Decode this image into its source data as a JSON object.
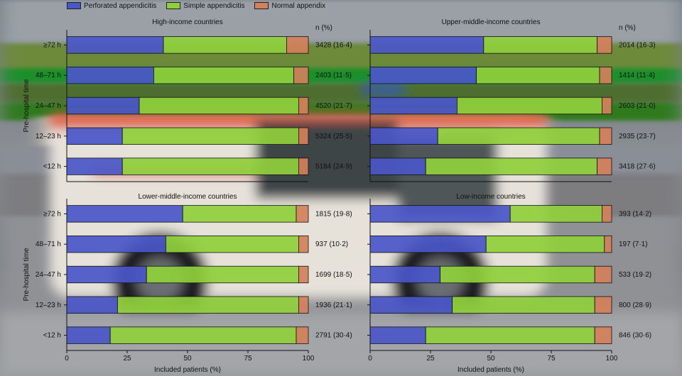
{
  "legend": [
    {
      "label": "Perforated appendicitis",
      "color": "#4a57c8"
    },
    {
      "label": "Simple appendicitis",
      "color": "#8fcf3c"
    },
    {
      "label": "Normal appendix",
      "color": "#d4805a"
    }
  ],
  "common": {
    "ylabel": "Pre-hospital time",
    "xlabel": "Included patients (%)",
    "n_header": "n (%)",
    "xticks": [
      0,
      25,
      50,
      75,
      100
    ],
    "categories": [
      "≥72 h",
      "48–71 h",
      "24–47 h",
      "12–23 h",
      "<12 h"
    ]
  },
  "chart_data": [
    {
      "type": "bar",
      "title": "High-income countries",
      "categories": [
        "≥72 h",
        "48–71 h",
        "24–47 h",
        "12–23 h",
        "<12 h"
      ],
      "series": [
        {
          "name": "Perforated appendicitis",
          "values": [
            40,
            36,
            30,
            23,
            23
          ]
        },
        {
          "name": "Simple appendicitis",
          "values": [
            51,
            58,
            66,
            73,
            73
          ]
        },
        {
          "name": "Normal appendix",
          "values": [
            9,
            6,
            4,
            4,
            4
          ]
        }
      ],
      "n_labels": [
        "3428 (16·4)",
        "2403 (11·5)",
        "4520 (21·7)",
        "5324 (25·5)",
        "5184 (24·9)"
      ],
      "xlim": [
        0,
        100
      ],
      "xlabel": "",
      "ylabel": "Pre-hospital time"
    },
    {
      "type": "bar",
      "title": "Upper-middle-income countries",
      "categories": [
        "≥72 h",
        "48–71 h",
        "24–47 h",
        "12–23 h",
        "<12 h"
      ],
      "series": [
        {
          "name": "Perforated appendicitis",
          "values": [
            47,
            44,
            36,
            28,
            23
          ]
        },
        {
          "name": "Simple appendicitis",
          "values": [
            47,
            51,
            60,
            67,
            71
          ]
        },
        {
          "name": "Normal appendix",
          "values": [
            6,
            5,
            4,
            5,
            6
          ]
        }
      ],
      "n_labels": [
        "2014 (16·3)",
        "1414 (11·4)",
        "2603 (21·0)",
        "2935 (23·7)",
        "3418 (27·6)"
      ],
      "xlim": [
        0,
        100
      ],
      "xlabel": "",
      "ylabel": ""
    },
    {
      "type": "bar",
      "title": "Lower-middle-income countries",
      "categories": [
        "≥72 h",
        "48–71 h",
        "24–47 h",
        "12–23 h",
        "<12 h"
      ],
      "series": [
        {
          "name": "Perforated appendicitis",
          "values": [
            48,
            41,
            33,
            21,
            18
          ]
        },
        {
          "name": "Simple appendicitis",
          "values": [
            47,
            55,
            63,
            75,
            77
          ]
        },
        {
          "name": "Normal appendix",
          "values": [
            5,
            4,
            4,
            4,
            5
          ]
        }
      ],
      "n_labels": [
        "1815 (19·8)",
        "937 (10·2)",
        "1699 (18·5)",
        "1936 (21·1)",
        "2791 (30·4)"
      ],
      "xlim": [
        0,
        100
      ],
      "xlabel": "Included patients (%)",
      "ylabel": "Pre-hospital time"
    },
    {
      "type": "bar",
      "title": "Low-income countries",
      "categories": [
        "≥72 h",
        "48–71 h",
        "24–47 h",
        "12–23 h",
        "<12 h"
      ],
      "series": [
        {
          "name": "Perforated appendicitis",
          "values": [
            58,
            48,
            29,
            34,
            23
          ]
        },
        {
          "name": "Simple appendicitis",
          "values": [
            38,
            49,
            64,
            59,
            70
          ]
        },
        {
          "name": "Normal appendix",
          "values": [
            4,
            3,
            7,
            7,
            7
          ]
        }
      ],
      "n_labels": [
        "393 (14·2)",
        "197 (7·1)",
        "533 (19·2)",
        "800 (28·9)",
        "846 (30·6)"
      ],
      "xlim": [
        0,
        100
      ],
      "xlabel": "Included patients (%)",
      "ylabel": ""
    }
  ]
}
